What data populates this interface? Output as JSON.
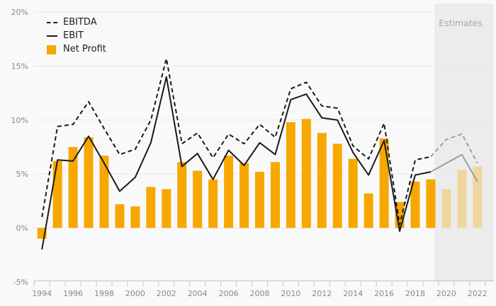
{
  "chart_data": {
    "type": "combo-bar-line",
    "x": [
      1994,
      1995,
      1996,
      1997,
      1998,
      1999,
      2000,
      2001,
      2002,
      2003,
      2004,
      2005,
      2006,
      2007,
      2008,
      2009,
      2010,
      2011,
      2012,
      2013,
      2014,
      2015,
      2016,
      2017,
      2018,
      2019,
      2020,
      2021,
      2022
    ],
    "xlabels": [
      "1994",
      "1996",
      "1998",
      "2000",
      "2002",
      "2004",
      "2006",
      "2008",
      "2010",
      "2012",
      "2014",
      "2016",
      "2018",
      "2020",
      "2022"
    ],
    "yticks": [
      {
        "label": "20%",
        "value": 20
      },
      {
        "label": "15%",
        "value": 15
      },
      {
        "label": "10%",
        "value": 10
      },
      {
        "label": "5%",
        "value": 5
      },
      {
        "label": "0%",
        "value": 0
      },
      {
        "label": "-5%",
        "value": -5
      }
    ],
    "ylim": [
      -5,
      20
    ],
    "grid": true,
    "legend_position": "top-left",
    "estimates": {
      "label": "Estimates",
      "start_year": 2020
    },
    "series": [
      {
        "name": "EBITDA",
        "type": "line",
        "dashed": true,
        "values": [
          1.0,
          9.4,
          9.6,
          11.7,
          9.2,
          6.8,
          7.3,
          10.0,
          15.7,
          7.8,
          8.8,
          6.5,
          8.7,
          7.8,
          9.6,
          8.4,
          12.9,
          13.5,
          11.3,
          11.1,
          7.6,
          6.4,
          9.7,
          0.3,
          6.3,
          6.6,
          8.2,
          8.7,
          6.0
        ]
      },
      {
        "name": "EBIT",
        "type": "line",
        "dashed": false,
        "values": [
          -2.0,
          6.3,
          6.2,
          8.5,
          6.0,
          3.4,
          4.7,
          7.9,
          14.0,
          5.7,
          6.9,
          4.5,
          7.2,
          5.8,
          7.9,
          6.8,
          11.9,
          12.4,
          10.2,
          10.0,
          7.0,
          4.9,
          8.1,
          -0.3,
          4.9,
          5.2,
          6.0,
          6.8,
          4.3
        ]
      },
      {
        "name": "Net Profit",
        "type": "bar",
        "values": [
          -1.0,
          6.2,
          7.5,
          8.4,
          6.7,
          2.2,
          2.0,
          3.8,
          3.6,
          6.1,
          5.3,
          4.5,
          6.7,
          6.0,
          5.2,
          6.1,
          9.8,
          10.1,
          8.8,
          7.8,
          6.4,
          3.2,
          8.3,
          2.4,
          4.3,
          4.5,
          3.6,
          5.4,
          5.7
        ]
      }
    ],
    "colors": {
      "bar": "#F6A800",
      "line": "#1a1a1a",
      "estimate_line": "#9e9e9e",
      "estimate_bg": "#ececec",
      "grid": "#e9e9e9",
      "axis": "#b7c0d6",
      "axis_text": "#85898c",
      "estimates_text": "#a9a9a9",
      "background": "#f9f9f9"
    }
  }
}
